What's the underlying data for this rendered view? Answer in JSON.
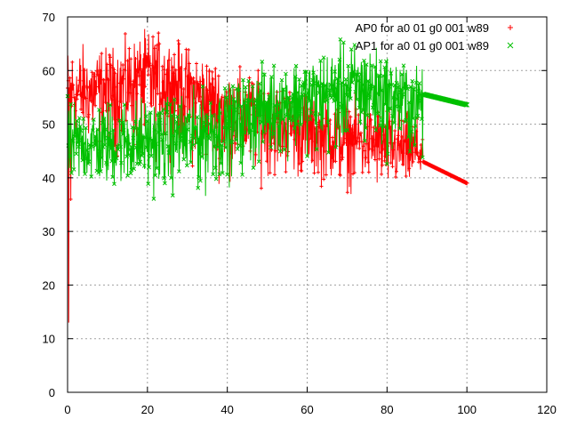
{
  "chart_data": {
    "type": "line",
    "title": "",
    "xlabel": "",
    "ylabel": "",
    "xlim": [
      0,
      120
    ],
    "ylim": [
      0,
      70
    ],
    "x_ticks": [
      0,
      20,
      40,
      60,
      80,
      100,
      120
    ],
    "y_ticks": [
      0,
      10,
      20,
      30,
      40,
      50,
      60,
      70
    ],
    "grid": true,
    "legend_position": "top-right",
    "series": [
      {
        "name": "AP0 for a0 01 g0 001 w89",
        "color": "#ff0000",
        "marker": "plus",
        "noise_x": [
          0,
          5,
          10,
          15,
          20,
          25,
          30,
          35,
          40,
          45,
          50,
          55,
          60,
          65,
          70,
          75,
          80,
          85,
          89
        ],
        "noise_center": [
          56,
          56,
          57,
          58,
          60,
          59,
          57,
          55,
          53,
          52,
          51,
          50,
          49,
          48,
          47,
          47,
          46,
          45,
          45
        ],
        "noise_min": [
          45,
          43,
          40,
          40,
          38,
          40,
          38,
          37,
          36,
          36,
          36,
          37,
          36,
          36,
          35,
          35,
          34,
          35,
          37
        ],
        "noise_max": [
          68,
          68,
          67,
          68,
          70,
          69,
          67,
          66,
          63,
          63,
          61,
          60,
          59,
          58,
          58,
          57,
          56,
          55,
          53
        ],
        "spikes": [
          {
            "x": 0.3,
            "y": 13
          },
          {
            "x": 0.8,
            "y": 36
          }
        ],
        "tail_x": [
          89,
          100
        ],
        "tail_y": [
          43,
          39
        ]
      },
      {
        "name": "AP1 for a0 01 g0 001 w89",
        "color": "#00c000",
        "marker": "cross",
        "noise_x": [
          0,
          5,
          10,
          15,
          20,
          25,
          30,
          35,
          40,
          45,
          50,
          55,
          60,
          65,
          70,
          75,
          80,
          85,
          89
        ],
        "noise_center": [
          46,
          46,
          46,
          47,
          47,
          47,
          48,
          49,
          50,
          52,
          53,
          54,
          55,
          56,
          57,
          57,
          56,
          55,
          55
        ],
        "noise_min": [
          35,
          36,
          35,
          35,
          34,
          34,
          34,
          33,
          36,
          37,
          40,
          41,
          42,
          40,
          40,
          40,
          40,
          40,
          38
        ],
        "noise_max": [
          57,
          57,
          58,
          58,
          58,
          58,
          59,
          59,
          60,
          62,
          64,
          65,
          66,
          67,
          68,
          68,
          66,
          64,
          62
        ],
        "spikes": [],
        "tail_x": [
          89,
          100
        ],
        "tail_y": [
          55.6,
          53.6
        ]
      }
    ]
  }
}
